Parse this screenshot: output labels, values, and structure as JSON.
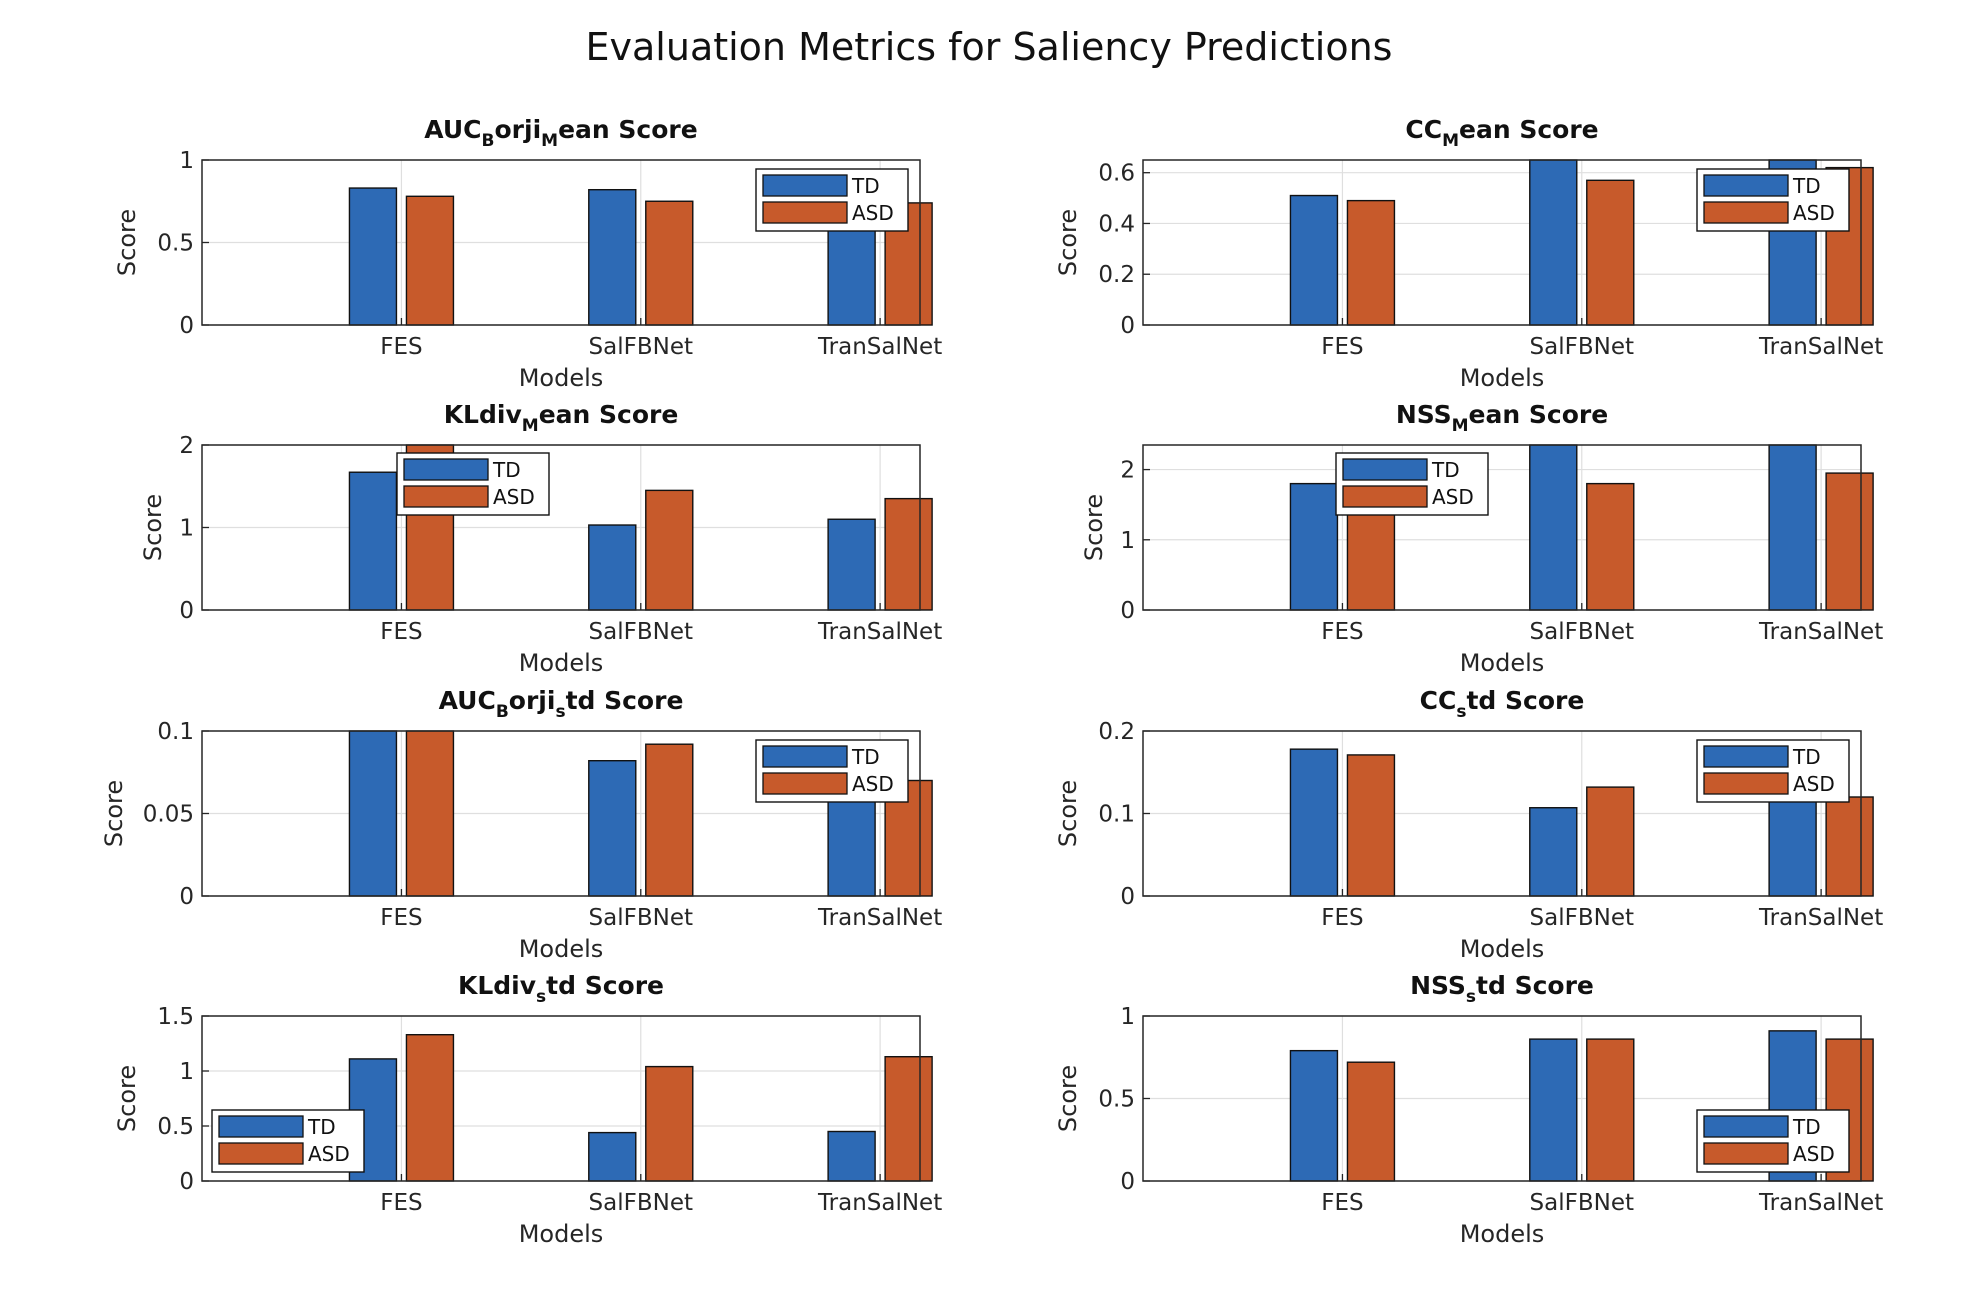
{
  "title": "Evaluation Metrics for Saliency Predictions",
  "colors": {
    "TD": "#2D6AB5",
    "ASD": "#C75A2B",
    "grid": "#dfdfdf",
    "axis": "#262626"
  },
  "chart_data": [
    {
      "type": "bar",
      "title_parts": [
        "AUC",
        "B",
        "orji",
        "M",
        "ean Score"
      ],
      "categories": [
        "FES",
        "SalFBNet",
        "TranSalNet"
      ],
      "series": [
        {
          "name": "TD",
          "values": [
            0.83,
            0.82,
            0.92
          ]
        },
        {
          "name": "ASD",
          "values": [
            0.78,
            0.75,
            0.74
          ]
        }
      ],
      "ylim": [
        0,
        1
      ],
      "yticks": [
        "0",
        "0.5",
        "1"
      ],
      "ytick_values": [
        0,
        0.5,
        1
      ],
      "xlabel": "Models",
      "ylabel": "Score",
      "legend": "top-right",
      "grid": true
    },
    {
      "type": "bar",
      "title_parts": [
        "CC",
        "M",
        "ean Score"
      ],
      "categories": [
        "FES",
        "SalFBNet",
        "TranSalNet"
      ],
      "series": [
        {
          "name": "TD",
          "values": [
            0.51,
            0.66,
            0.66
          ]
        },
        {
          "name": "ASD",
          "values": [
            0.49,
            0.57,
            0.62
          ]
        }
      ],
      "ylim": [
        0,
        0.65
      ],
      "yticks": [
        "0",
        "0.2",
        "0.4",
        "0.6"
      ],
      "ytick_values": [
        0,
        0.2,
        0.4,
        0.6
      ],
      "xlabel": "Models",
      "ylabel": "Score",
      "legend": "top-right",
      "grid": true
    },
    {
      "type": "bar",
      "title_parts": [
        "KLdiv",
        "M",
        "ean Score"
      ],
      "categories": [
        "FES",
        "SalFBNet",
        "TranSalNet"
      ],
      "series": [
        {
          "name": "TD",
          "values": [
            1.67,
            1.03,
            1.1
          ]
        },
        {
          "name": "ASD",
          "values": [
            2.0,
            1.45,
            1.35
          ]
        }
      ],
      "ylim": [
        0,
        2
      ],
      "yticks": [
        "0",
        "1",
        "2"
      ],
      "ytick_values": [
        0,
        1,
        2
      ],
      "xlabel": "Models",
      "ylabel": "Score",
      "legend": "top-center",
      "grid": true
    },
    {
      "type": "bar",
      "title_parts": [
        "NSS",
        "M",
        "ean Score"
      ],
      "categories": [
        "FES",
        "SalFBNet",
        "TranSalNet"
      ],
      "series": [
        {
          "name": "TD",
          "values": [
            1.8,
            2.35,
            2.35
          ]
        },
        {
          "name": "ASD",
          "values": [
            1.52,
            1.8,
            1.95
          ]
        }
      ],
      "ylim": [
        0,
        2.35
      ],
      "yticks": [
        "0",
        "1",
        "2"
      ],
      "ytick_values": [
        0,
        1,
        2
      ],
      "xlabel": "Models",
      "ylabel": "Score",
      "legend": "top-left",
      "grid": true
    },
    {
      "type": "bar",
      "title_parts": [
        "AUC",
        "B",
        "orji",
        "s",
        "td Score"
      ],
      "categories": [
        "FES",
        "SalFBNet",
        "TranSalNet"
      ],
      "series": [
        {
          "name": "TD",
          "values": [
            0.1,
            0.082,
            0.062
          ]
        },
        {
          "name": "ASD",
          "values": [
            0.102,
            0.092,
            0.07
          ]
        }
      ],
      "ylim": [
        0,
        0.1
      ],
      "yticks": [
        "0",
        "0.05",
        "0.1"
      ],
      "ytick_values": [
        0,
        0.05,
        0.1
      ],
      "xlabel": "Models",
      "ylabel": "Score",
      "legend": "top-right",
      "grid": true
    },
    {
      "type": "bar",
      "title_parts": [
        "CC",
        "s",
        "td Score"
      ],
      "categories": [
        "FES",
        "SalFBNet",
        "TranSalNet"
      ],
      "series": [
        {
          "name": "TD",
          "values": [
            0.178,
            0.107,
            0.122
          ]
        },
        {
          "name": "ASD",
          "values": [
            0.171,
            0.132,
            0.12
          ]
        }
      ],
      "ylim": [
        0,
        0.2
      ],
      "yticks": [
        "0",
        "0.1",
        "0.2"
      ],
      "ytick_values": [
        0,
        0.1,
        0.2
      ],
      "xlabel": "Models",
      "ylabel": "Score",
      "legend": "top-right",
      "grid": true
    },
    {
      "type": "bar",
      "title_parts": [
        "KLdiv",
        "s",
        "td Score"
      ],
      "categories": [
        "FES",
        "SalFBNet",
        "TranSalNet"
      ],
      "series": [
        {
          "name": "TD",
          "values": [
            1.11,
            0.44,
            0.45
          ]
        },
        {
          "name": "ASD",
          "values": [
            1.33,
            1.04,
            1.13
          ]
        }
      ],
      "ylim": [
        0,
        1.5
      ],
      "yticks": [
        "0",
        "0.5",
        "1",
        "1.5"
      ],
      "ytick_values": [
        0,
        0.5,
        1,
        1.5
      ],
      "xlabel": "Models",
      "ylabel": "Score",
      "legend": "bottom-left",
      "grid": true
    },
    {
      "type": "bar",
      "title_parts": [
        "NSS",
        "s",
        "td Score"
      ],
      "categories": [
        "FES",
        "SalFBNet",
        "TranSalNet"
      ],
      "series": [
        {
          "name": "TD",
          "values": [
            0.79,
            0.86,
            0.91
          ]
        },
        {
          "name": "ASD",
          "values": [
            0.72,
            0.86,
            0.86
          ]
        }
      ],
      "ylim": [
        0,
        1
      ],
      "yticks": [
        "0",
        "0.5",
        "1"
      ],
      "ytick_values": [
        0,
        0.5,
        1
      ],
      "xlabel": "Models",
      "ylabel": "Score",
      "legend": "bottom-right",
      "grid": true
    }
  ]
}
